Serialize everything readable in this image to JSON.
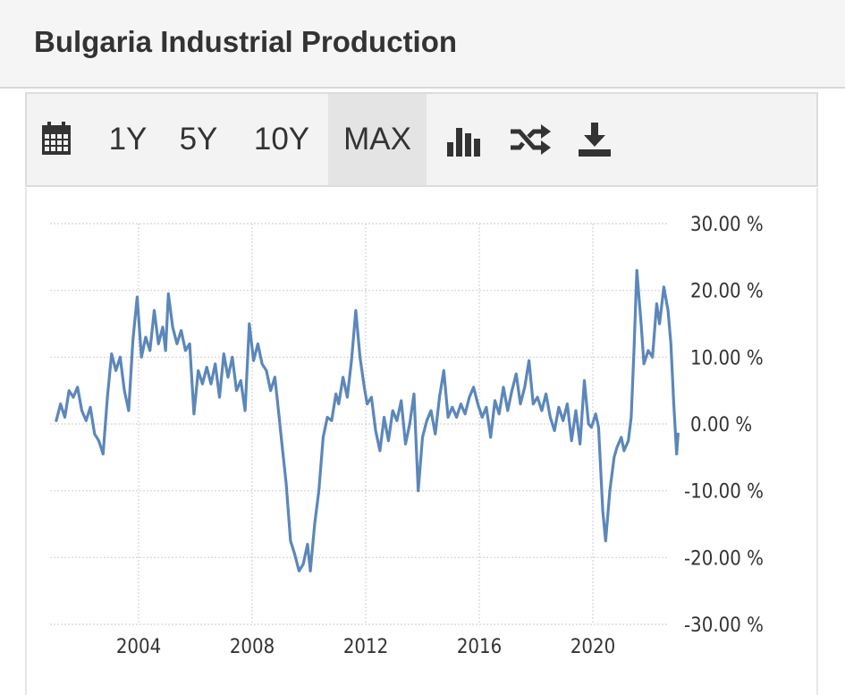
{
  "header": {
    "title": "Bulgaria Industrial Production"
  },
  "toolbar": {
    "calendar_icon": "calendar-icon",
    "ranges": [
      "1Y",
      "5Y",
      "10Y",
      "MAX"
    ],
    "active_range": "MAX",
    "bar_chart_icon": "bar-chart-icon",
    "compare_icon": "shuffle-icon",
    "download_icon": "download-icon"
  },
  "colors": {
    "line": "#5b87ba",
    "grid": "#d4d4d4",
    "active_tab": "#e4e4e4"
  },
  "chart_data": {
    "type": "line",
    "title": "",
    "xlabel": "",
    "ylabel": "",
    "ylim": [
      -30,
      30
    ],
    "xlim": [
      2001.1,
      2022.95
    ],
    "x_ticks": [
      "2004",
      "2008",
      "2012",
      "2016",
      "2020"
    ],
    "y_ticks": [
      "30.00 %",
      "20.00 %",
      "10.00 %",
      "0.00 %",
      "-10.00 %",
      "-20.00 %",
      "-30.00 %"
    ],
    "grid": true,
    "y_axis_side": "right",
    "series": [
      {
        "values": [
          [
            2001.1,
            0.5
          ],
          [
            2001.25,
            3.0
          ],
          [
            2001.4,
            1.0
          ],
          [
            2001.55,
            5.0
          ],
          [
            2001.7,
            4.0
          ],
          [
            2001.85,
            5.5
          ],
          [
            2002.0,
            2.0
          ],
          [
            2002.15,
            0.5
          ],
          [
            2002.3,
            2.5
          ],
          [
            2002.45,
            -1.5
          ],
          [
            2002.6,
            -2.5
          ],
          [
            2002.75,
            -4.5
          ],
          [
            2002.9,
            4.0
          ],
          [
            2003.05,
            10.5
          ],
          [
            2003.2,
            8.0
          ],
          [
            2003.35,
            10.0
          ],
          [
            2003.5,
            5.0
          ],
          [
            2003.65,
            2.0
          ],
          [
            2003.8,
            12.5
          ],
          [
            2003.95,
            19.0
          ],
          [
            2004.1,
            10.0
          ],
          [
            2004.25,
            13.0
          ],
          [
            2004.4,
            11.0
          ],
          [
            2004.55,
            17.0
          ],
          [
            2004.7,
            12.0
          ],
          [
            2004.85,
            14.5
          ],
          [
            2004.95,
            11.0
          ],
          [
            2005.05,
            19.5
          ],
          [
            2005.2,
            14.5
          ],
          [
            2005.35,
            12.0
          ],
          [
            2005.5,
            14.0
          ],
          [
            2005.65,
            11.0
          ],
          [
            2005.8,
            12.0
          ],
          [
            2005.95,
            1.5
          ],
          [
            2006.1,
            8.0
          ],
          [
            2006.25,
            6.0
          ],
          [
            2006.4,
            8.5
          ],
          [
            2006.55,
            6.0
          ],
          [
            2006.7,
            9.0
          ],
          [
            2006.85,
            4.0
          ],
          [
            2007.0,
            10.5
          ],
          [
            2007.15,
            7.0
          ],
          [
            2007.3,
            10.0
          ],
          [
            2007.45,
            5.0
          ],
          [
            2007.6,
            6.5
          ],
          [
            2007.75,
            2.0
          ],
          [
            2007.9,
            15.0
          ],
          [
            2008.05,
            9.5
          ],
          [
            2008.2,
            12.0
          ],
          [
            2008.35,
            9.0
          ],
          [
            2008.5,
            8.0
          ],
          [
            2008.65,
            5.0
          ],
          [
            2008.8,
            7.0
          ],
          [
            2008.95,
            1.0
          ],
          [
            2009.05,
            -3.0
          ],
          [
            2009.2,
            -9.0
          ],
          [
            2009.35,
            -17.5
          ],
          [
            2009.5,
            -19.5
          ],
          [
            2009.65,
            -22.0
          ],
          [
            2009.8,
            -21.0
          ],
          [
            2009.95,
            -18.0
          ],
          [
            2010.05,
            -22.0
          ],
          [
            2010.2,
            -15.0
          ],
          [
            2010.35,
            -10.0
          ],
          [
            2010.5,
            -2.0
          ],
          [
            2010.65,
            1.0
          ],
          [
            2010.8,
            0.5
          ],
          [
            2010.95,
            4.5
          ],
          [
            2011.05,
            3.0
          ],
          [
            2011.2,
            7.0
          ],
          [
            2011.35,
            4.0
          ],
          [
            2011.5,
            9.5
          ],
          [
            2011.65,
            17.0
          ],
          [
            2011.8,
            10.0
          ],
          [
            2011.95,
            5.5
          ],
          [
            2012.05,
            3.0
          ],
          [
            2012.2,
            4.0
          ],
          [
            2012.35,
            -1.0
          ],
          [
            2012.5,
            -4.0
          ],
          [
            2012.65,
            1.0
          ],
          [
            2012.8,
            -2.5
          ],
          [
            2012.95,
            2.0
          ],
          [
            2013.1,
            0.5
          ],
          [
            2013.25,
            3.5
          ],
          [
            2013.4,
            -3.0
          ],
          [
            2013.55,
            0.0
          ],
          [
            2013.7,
            4.5
          ],
          [
            2013.85,
            -10.0
          ],
          [
            2014.0,
            -2.0
          ],
          [
            2014.15,
            0.5
          ],
          [
            2014.3,
            2.0
          ],
          [
            2014.45,
            -1.5
          ],
          [
            2014.6,
            4.0
          ],
          [
            2014.75,
            8.0
          ],
          [
            2014.9,
            1.0
          ],
          [
            2015.05,
            2.5
          ],
          [
            2015.2,
            1.0
          ],
          [
            2015.35,
            3.0
          ],
          [
            2015.5,
            1.5
          ],
          [
            2015.65,
            4.0
          ],
          [
            2015.8,
            5.5
          ],
          [
            2015.95,
            3.0
          ],
          [
            2016.1,
            1.0
          ],
          [
            2016.25,
            2.5
          ],
          [
            2016.4,
            -2.0
          ],
          [
            2016.55,
            3.5
          ],
          [
            2016.7,
            1.5
          ],
          [
            2016.85,
            5.5
          ],
          [
            2017.0,
            2.0
          ],
          [
            2017.15,
            5.0
          ],
          [
            2017.3,
            7.5
          ],
          [
            2017.45,
            3.0
          ],
          [
            2017.6,
            5.5
          ],
          [
            2017.75,
            9.5
          ],
          [
            2017.9,
            3.0
          ],
          [
            2018.05,
            4.0
          ],
          [
            2018.2,
            2.0
          ],
          [
            2018.35,
            4.5
          ],
          [
            2018.5,
            1.0
          ],
          [
            2018.65,
            -1.0
          ],
          [
            2018.8,
            2.5
          ],
          [
            2018.95,
            0.5
          ],
          [
            2019.1,
            3.0
          ],
          [
            2019.25,
            -2.5
          ],
          [
            2019.4,
            2.0
          ],
          [
            2019.55,
            -3.0
          ],
          [
            2019.7,
            6.5
          ],
          [
            2019.85,
            0.0
          ],
          [
            2019.95,
            -0.5
          ],
          [
            2020.1,
            1.5
          ],
          [
            2020.2,
            -0.5
          ],
          [
            2020.35,
            -13.0
          ],
          [
            2020.45,
            -17.5
          ],
          [
            2020.6,
            -10.0
          ],
          [
            2020.75,
            -5.0
          ],
          [
            2020.85,
            -3.5
          ],
          [
            2021.0,
            -2.0
          ],
          [
            2021.1,
            -4.0
          ],
          [
            2021.25,
            -2.5
          ],
          [
            2021.35,
            1.0
          ],
          [
            2021.45,
            11.0
          ],
          [
            2021.55,
            23.0
          ],
          [
            2021.7,
            15.0
          ],
          [
            2021.8,
            9.0
          ],
          [
            2021.95,
            11.0
          ],
          [
            2022.1,
            10.0
          ],
          [
            2022.25,
            18.0
          ],
          [
            2022.35,
            15.0
          ],
          [
            2022.5,
            20.5
          ],
          [
            2022.65,
            17.0
          ],
          [
            2022.75,
            12.0
          ],
          [
            2022.85,
            3.0
          ],
          [
            2022.95,
            -4.5
          ],
          [
            2023.0,
            -1.5
          ]
        ]
      }
    ]
  }
}
